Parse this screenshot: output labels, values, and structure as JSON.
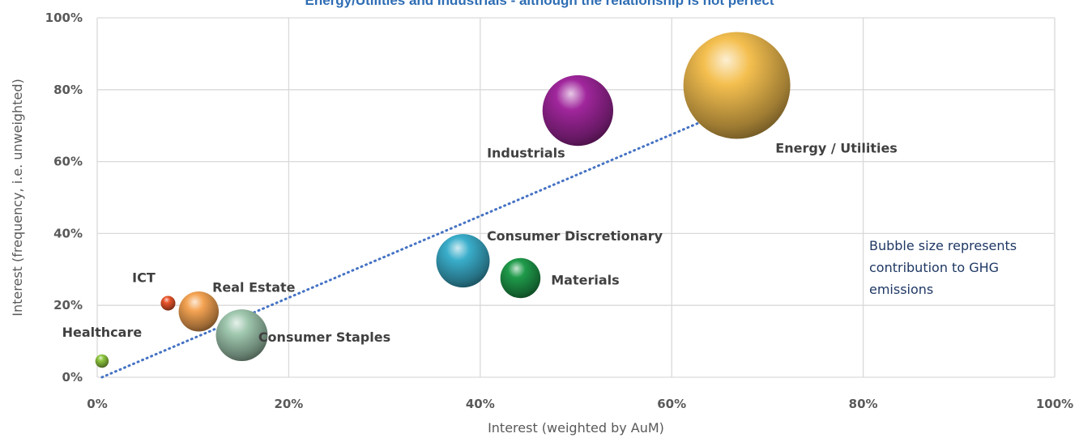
{
  "chart_data": {
    "type": "scatter",
    "title": "Energy/Utilities and Industrials - although the relationship is not perfect",
    "xlabel": "Interest (weighted by AuM)",
    "ylabel": "Interest (frequency, i.e. unweighted)",
    "xlim": [
      0,
      100
    ],
    "ylim": [
      0,
      100
    ],
    "x_ticks": [
      "0%",
      "20%",
      "40%",
      "60%",
      "80%",
      "100%"
    ],
    "y_ticks": [
      "0%",
      "20%",
      "40%",
      "60%",
      "80%",
      "100%"
    ],
    "grid": true,
    "bubble_size_note": "Bubble size represents contribution to GHG emissions",
    "trendline": {
      "from": [
        0.5,
        0
      ],
      "to": [
        67,
        75.5
      ]
    },
    "series": [
      {
        "name": "Healthcare",
        "x": 0.5,
        "y": 4.5,
        "size": 1,
        "color": "#8ec63f"
      },
      {
        "name": "ICT",
        "x": 7.4,
        "y": 20.6,
        "size": 1.2,
        "color": "#e8542a"
      },
      {
        "name": "Real Estate",
        "x": 10.6,
        "y": 18.3,
        "size": 9,
        "color": "#f4a352"
      },
      {
        "name": "Consumer Staples",
        "x": 15.1,
        "y": 11.7,
        "size": 15,
        "color": "#9fc7ae"
      },
      {
        "name": "Consumer Discretionary",
        "x": 38.2,
        "y": 32.4,
        "size": 16,
        "color": "#3aaecb"
      },
      {
        "name": "Materials",
        "x": 44.2,
        "y": 27.6,
        "size": 9,
        "color": "#1f9a4a"
      },
      {
        "name": "Industrials",
        "x": 50.2,
        "y": 74.2,
        "size": 28,
        "color": "#a0269c"
      },
      {
        "name": "Energy / Utilities",
        "x": 66.8,
        "y": 81.2,
        "size": 64,
        "color": "#f4bf4f"
      }
    ]
  }
}
